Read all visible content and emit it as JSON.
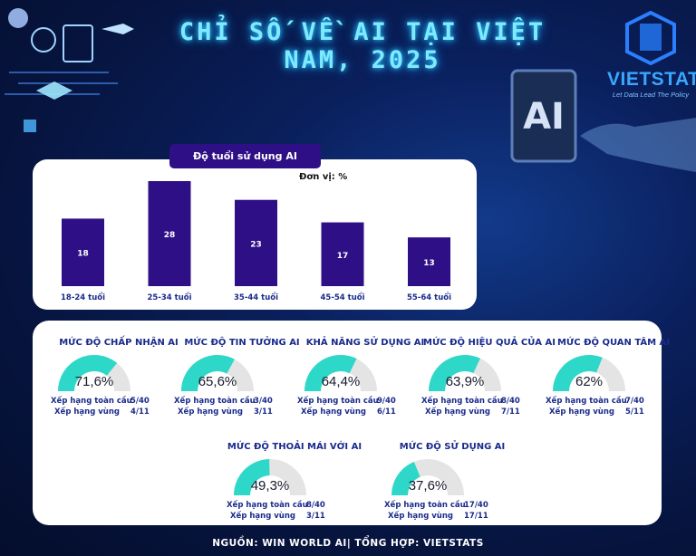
{
  "title": "CHỈ SỐ VỀ AI TẠI VIỆT NAM, 2025",
  "logo": {
    "text": "VIETSTATS",
    "tagline": "Let Data Lead The Policy"
  },
  "colors": {
    "bar": "#2e0f86",
    "gauge_fill": "#2dd8c9",
    "gauge_track": "#e4e4e4",
    "label": "#1a2a8c"
  },
  "chart_data": [
    {
      "type": "bar",
      "title": "Độ tuổi sử dụng AI",
      "unit_label": "Đơn vị: %",
      "categories": [
        "18-24 tuổi",
        "25-34 tuổi",
        "35-44 tuổi",
        "45-54 tuổi",
        "55-64 tuổi"
      ],
      "values": [
        18,
        28,
        23,
        17,
        13
      ],
      "ylim": [
        0,
        28
      ]
    },
    {
      "type": "gauge",
      "max": 100,
      "items": [
        {
          "title": "MỨC ĐỘ CHẤP NHẬN AI",
          "value": 71.6,
          "value_label": "71,6%",
          "global_label": "Xếp hạng toàn cầu",
          "global_rank": "5/40",
          "regional_label": "Xếp hạng vùng",
          "regional_rank": "4/11"
        },
        {
          "title": "MỨC ĐỘ TIN TƯỞNG AI",
          "value": 65.6,
          "value_label": "65,6%",
          "global_label": "Xếp hạng toàn cầu",
          "global_rank": "3/40",
          "regional_label": "Xếp hạng vùng",
          "regional_rank": "3/11"
        },
        {
          "title": "KHẢ NĂNG SỬ DỤNG AI",
          "value": 64.4,
          "value_label": "64,4%",
          "global_label": "Xếp hạng toàn cầu",
          "global_rank": "9/40",
          "regional_label": "Xếp hạng vùng",
          "regional_rank": "6/11"
        },
        {
          "title": "MỨC ĐỘ HIỆU QUẢ CỦA AI",
          "value": 63.9,
          "value_label": "63,9%",
          "global_label": "Xếp hạng toàn cầu",
          "global_rank": "8/40",
          "regional_label": "Xếp hạng vùng",
          "regional_rank": "7/11"
        },
        {
          "title": "MỨC ĐỘ QUAN TÂM AI",
          "value": 62,
          "value_label": "62%",
          "global_label": "Xếp hạng toàn cầu",
          "global_rank": "7/40",
          "regional_label": "Xếp hạng vùng",
          "regional_rank": "5/11"
        },
        {
          "title": "MỨC ĐỘ THOẢI MÁI VỚI AI",
          "value": 49.3,
          "value_label": "49,3%",
          "global_label": "Xếp hạng toàn cầu",
          "global_rank": "8/40",
          "regional_label": "Xếp hạng vùng",
          "regional_rank": "3/11"
        },
        {
          "title": "MỨC ĐỘ SỬ DỤNG AI",
          "value": 37.6,
          "value_label": "37,6%",
          "global_label": "Xếp hạng toàn cầu",
          "global_rank": "17/40",
          "regional_label": "Xếp hạng vùng",
          "regional_rank": "17/11"
        }
      ]
    }
  ],
  "source": "NGUỒN: WIN WORLD AI| TỔNG HỢP: VIETSTATS"
}
